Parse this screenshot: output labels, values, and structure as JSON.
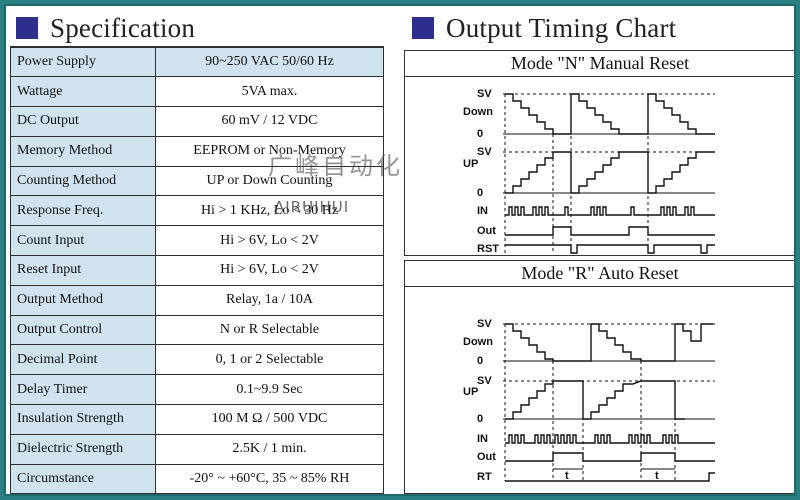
{
  "spec_header": {
    "title": "Specification"
  },
  "chart_header": {
    "title": "Output Timing Chart"
  },
  "spec_rows": [
    {
      "label": "Power Supply",
      "value": "90~250 VAC 50/60 Hz"
    },
    {
      "label": "Wattage",
      "value": "5VA max."
    },
    {
      "label": "DC Output",
      "value": "60 mV / 12 VDC"
    },
    {
      "label": "Memory Method",
      "value": "EEPROM or Non-Memory"
    },
    {
      "label": "Counting Method",
      "value": "UP or Down Counting"
    },
    {
      "label": "Response Freq.",
      "value": "Hi > 1 KHz, Lo < 30 Hz"
    },
    {
      "label": "Count Input",
      "value": "Hi > 6V, Lo < 2V"
    },
    {
      "label": "Reset Input",
      "value": "Hi > 6V, Lo < 2V"
    },
    {
      "label": "Output Method",
      "value": "Relay, 1a / 10A"
    },
    {
      "label": "Output Control",
      "value": "N or R Selectable"
    },
    {
      "label": "Decimal Point",
      "value": "0, 1 or 2 Selectable"
    },
    {
      "label": "Delay Timer",
      "value": "0.1~9.9 Sec"
    },
    {
      "label": "Insulation Strength",
      "value": "100 M Ω / 500 VDC"
    },
    {
      "label": "Dielectric Strength",
      "value": "2.5K / 1 min."
    },
    {
      "label": "Circumstance",
      "value": "-20° ~ +60°C, 35 ~ 85% RH"
    }
  ],
  "chart_n": {
    "title": "Mode \"N\" Manual Reset",
    "labels": {
      "sv_down": "SV",
      "down": "Down",
      "zero_down": "0",
      "up": "UP",
      "sv_up": "SV",
      "zero_up": "0",
      "in": "IN",
      "out": "Out",
      "rst": "RST"
    }
  },
  "chart_r": {
    "title": "Mode \"R\" Auto Reset",
    "labels": {
      "sv_down": "SV",
      "down": "Down",
      "zero_down": "0",
      "up": "UP",
      "sv_up": "SV",
      "zero_up": "0",
      "in": "IN",
      "out": "Out",
      "rt": "RT",
      "t1": "t",
      "t2": "t"
    }
  },
  "watermark": {
    "cn": "广峰自动化",
    "en": "AIRUIHUI"
  }
}
